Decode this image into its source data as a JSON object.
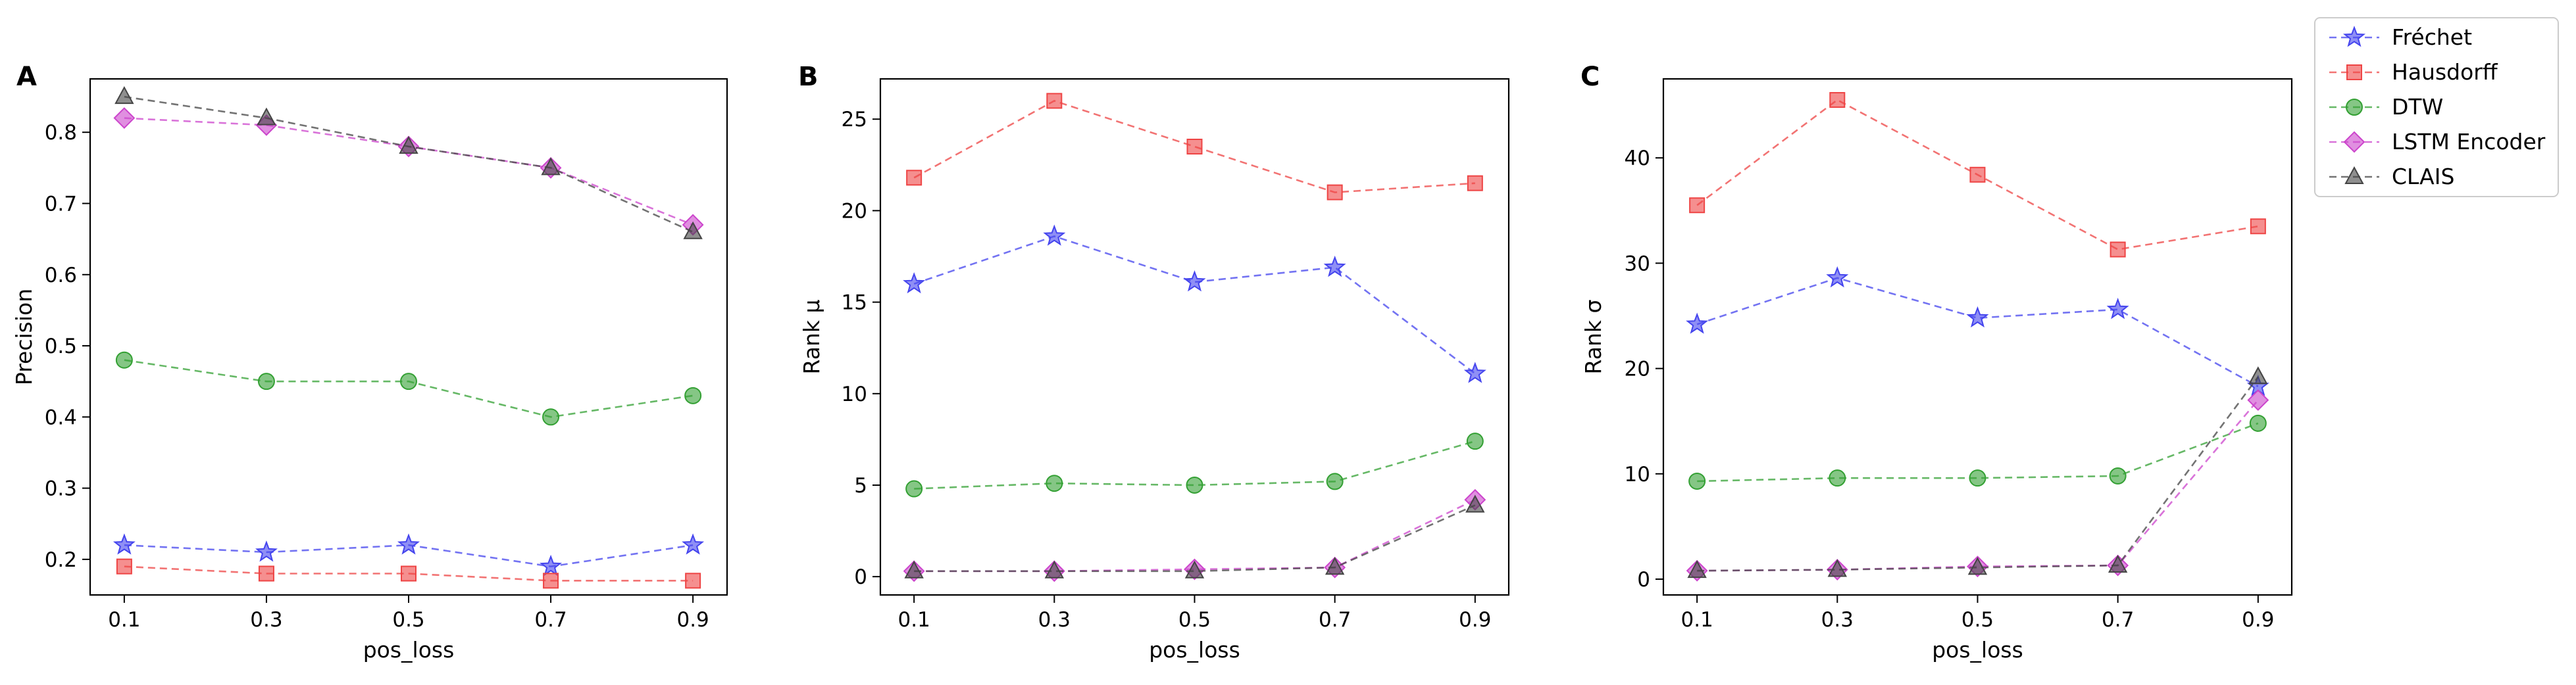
{
  "chart_data": [
    {
      "type": "line",
      "panel_label": "A",
      "xlabel": "pos_loss",
      "ylabel": "Precision",
      "x": [
        0.1,
        0.3,
        0.5,
        0.7,
        0.9
      ],
      "x_tick_labels": [
        "0.1",
        "0.3",
        "0.5",
        "0.7",
        "0.9"
      ],
      "ylim": [
        0.15,
        0.875
      ],
      "y_ticks": [
        0.2,
        0.3,
        0.4,
        0.5,
        0.6,
        0.7,
        0.8
      ],
      "y_tick_labels": [
        "0.2",
        "0.3",
        "0.4",
        "0.5",
        "0.6",
        "0.7",
        "0.8"
      ],
      "series": [
        {
          "name": "Fréchet",
          "values": [
            0.22,
            0.21,
            0.22,
            0.19,
            0.22
          ]
        },
        {
          "name": "Hausdorff",
          "values": [
            0.19,
            0.18,
            0.18,
            0.17,
            0.17
          ]
        },
        {
          "name": "DTW",
          "values": [
            0.48,
            0.45,
            0.45,
            0.4,
            0.43
          ]
        },
        {
          "name": "LSTM Encoder",
          "values": [
            0.82,
            0.81,
            0.78,
            0.75,
            0.67
          ]
        },
        {
          "name": "CLAIS",
          "values": [
            0.85,
            0.82,
            0.78,
            0.75,
            0.66
          ]
        }
      ]
    },
    {
      "type": "line",
      "panel_label": "B",
      "xlabel": "pos_loss",
      "ylabel": "Rank μ",
      "x": [
        0.1,
        0.3,
        0.5,
        0.7,
        0.9
      ],
      "x_tick_labels": [
        "0.1",
        "0.3",
        "0.5",
        "0.7",
        "0.9"
      ],
      "ylim": [
        -1.0,
        27.2
      ],
      "y_ticks": [
        0,
        5,
        10,
        15,
        20,
        25
      ],
      "y_tick_labels": [
        "0",
        "5",
        "10",
        "15",
        "20",
        "25"
      ],
      "series": [
        {
          "name": "Fréchet",
          "values": [
            16.0,
            18.6,
            16.1,
            16.9,
            11.1
          ]
        },
        {
          "name": "Hausdorff",
          "values": [
            21.8,
            26.0,
            23.5,
            21.0,
            21.5
          ]
        },
        {
          "name": "DTW",
          "values": [
            4.8,
            5.1,
            5.0,
            5.2,
            7.4
          ]
        },
        {
          "name": "LSTM Encoder",
          "values": [
            0.3,
            0.3,
            0.4,
            0.5,
            4.2
          ]
        },
        {
          "name": "CLAIS",
          "values": [
            0.3,
            0.3,
            0.3,
            0.5,
            3.9
          ]
        }
      ]
    },
    {
      "type": "line",
      "panel_label": "C",
      "xlabel": "pos_loss",
      "ylabel": "Rank σ",
      "x": [
        0.1,
        0.3,
        0.5,
        0.7,
        0.9
      ],
      "x_tick_labels": [
        "0.1",
        "0.3",
        "0.5",
        "0.7",
        "0.9"
      ],
      "ylim": [
        -1.5,
        47.5
      ],
      "y_ticks": [
        0,
        10,
        20,
        30,
        40
      ],
      "y_tick_labels": [
        "0",
        "10",
        "20",
        "30",
        "40"
      ],
      "series": [
        {
          "name": "Fréchet",
          "values": [
            24.2,
            28.6,
            24.8,
            25.6,
            18.3
          ]
        },
        {
          "name": "Hausdorff",
          "values": [
            35.5,
            45.5,
            38.4,
            31.3,
            33.5
          ]
        },
        {
          "name": "DTW",
          "values": [
            9.3,
            9.6,
            9.6,
            9.8,
            14.8
          ]
        },
        {
          "name": "LSTM Encoder",
          "values": [
            0.8,
            0.9,
            1.2,
            1.3,
            17.0
          ]
        },
        {
          "name": "CLAIS",
          "values": [
            0.8,
            0.9,
            1.1,
            1.3,
            19.2
          ]
        }
      ]
    }
  ],
  "legend": {
    "placement": "outside right, top",
    "entries": [
      {
        "name": "Fréchet",
        "color": "#4444ee",
        "marker": "star"
      },
      {
        "name": "Hausdorff",
        "color": "#ee4444",
        "marker": "square"
      },
      {
        "name": "DTW",
        "color": "#33a033",
        "marker": "circle"
      },
      {
        "name": "LSTM Encoder",
        "color": "#cc44cc",
        "marker": "diamond"
      },
      {
        "name": "CLAIS",
        "color": "#444444",
        "marker": "triangle"
      }
    ]
  },
  "series_styles": {
    "Fréchet": {
      "color": "#4444ee",
      "marker": "star"
    },
    "Hausdorff": {
      "color": "#ee4444",
      "marker": "square"
    },
    "DTW": {
      "color": "#33a033",
      "marker": "circle"
    },
    "LSTM Encoder": {
      "color": "#cc44cc",
      "marker": "diamond"
    },
    "CLAIS": {
      "color": "#444444",
      "marker": "triangle"
    }
  },
  "line_style": "dashed",
  "grid": false
}
